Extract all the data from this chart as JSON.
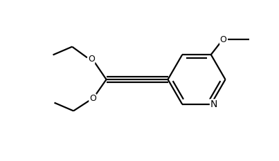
{
  "background_color": "#ffffff",
  "line_color": "#000000",
  "line_width": 1.6,
  "font_size": 9,
  "figsize": [
    4.03,
    2.33
  ],
  "dpi": 100,
  "xlim": [
    0,
    4.03
  ],
  "ylim": [
    0,
    2.33
  ]
}
